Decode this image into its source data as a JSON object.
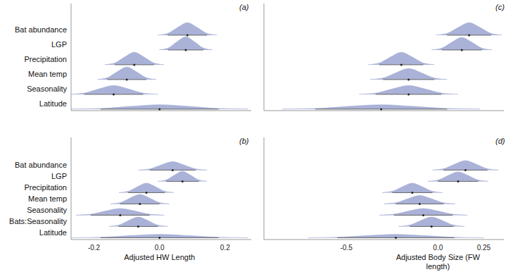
{
  "chart_data": [
    {
      "type": "ridgeline",
      "title": "(a)",
      "xlim": [
        -0.27,
        0.28
      ],
      "tick_labels": false,
      "vline": 0,
      "color": "#9ea7d3",
      "series": [
        {
          "name": "Bat abundance",
          "mean": 0.085,
          "lower": 0.025,
          "upper": 0.145,
          "x": [
            -0.005,
            0.025,
            0.055,
            0.085,
            0.115,
            0.145,
            0.175
          ],
          "values": [
            0.009,
            0.119,
            0.519,
            0.85,
            0.519,
            0.119,
            0.009
          ]
        },
        {
          "name": "LGP",
          "mean": 0.08,
          "lower": 0.026,
          "upper": 0.134,
          "x": [
            -0.001,
            0.026,
            0.053,
            0.08,
            0.107,
            0.134,
            0.161
          ],
          "values": [
            0.009,
            0.126,
            0.549,
            0.9,
            0.549,
            0.126,
            0.009
          ]
        },
        {
          "name": "Precipitation",
          "mean": -0.077,
          "lower": -0.137,
          "upper": -0.017,
          "x": [
            -0.167,
            -0.137,
            -0.107,
            -0.077,
            -0.047,
            -0.017,
            0.013
          ],
          "values": [
            0.009,
            0.119,
            0.519,
            0.85,
            0.519,
            0.119,
            0.009
          ]
        },
        {
          "name": "Mean temp",
          "mean": -0.1,
          "lower": -0.16,
          "upper": -0.04,
          "x": [
            -0.19,
            -0.16,
            -0.13,
            -0.1,
            -0.07,
            -0.04,
            -0.01
          ],
          "values": [
            0.009,
            0.119,
            0.519,
            0.85,
            0.519,
            0.119,
            0.009
          ]
        },
        {
          "name": "Seasonality",
          "mean": -0.14,
          "lower": -0.23,
          "upper": -0.05,
          "x": [
            -0.275,
            -0.23,
            -0.185,
            -0.14,
            -0.095,
            -0.05,
            -0.005
          ],
          "values": [
            0.006,
            0.084,
            0.366,
            0.6,
            0.366,
            0.084,
            0.006
          ]
        },
        {
          "name": "Latitude",
          "mean": 0,
          "lower": -0.18,
          "upper": 0.18,
          "x": [
            -0.27,
            -0.18,
            -0.09,
            0,
            0.09,
            0.18,
            0.27
          ],
          "values": [
            0.003,
            0.042,
            0.183,
            0.3,
            0.183,
            0.042,
            0.003
          ]
        }
      ]
    },
    {
      "type": "ridgeline",
      "title": "(b)",
      "xlabel": "Adjusted HW Length",
      "xlim": [
        -0.27,
        0.28
      ],
      "xticks": [
        -0.2,
        {
          "value": 0,
          "label": "0.0"
        },
        0.2
      ],
      "vline": 0,
      "color": "#9ea7d3",
      "series": [
        {
          "name": "Bat abundance",
          "mean": 0.04,
          "lower": -0.03,
          "upper": 0.11,
          "x": [
            -0.065,
            -0.03,
            0.005,
            0.04,
            0.075,
            0.11,
            0.145
          ],
          "values": [
            0.008,
            0.105,
            0.458,
            0.75,
            0.458,
            0.105,
            0.008
          ]
        },
        {
          "name": "LGP",
          "mean": 0.07,
          "lower": 0.02,
          "upper": 0.12,
          "x": [
            -0.005,
            0.02,
            0.045,
            0.07,
            0.095,
            0.12,
            0.145
          ],
          "values": [
            0.009,
            0.126,
            0.549,
            0.9,
            0.549,
            0.126,
            0.009
          ]
        },
        {
          "name": "Precipitation",
          "mean": -0.04,
          "lower": -0.096,
          "upper": 0.016,
          "x": [
            -0.124,
            -0.096,
            -0.068,
            -0.04,
            -0.012,
            0.016,
            0.044
          ],
          "values": [
            0.009,
            0.119,
            0.519,
            0.85,
            0.519,
            0.119,
            0.009
          ]
        },
        {
          "name": "Mean temp",
          "mean": -0.06,
          "lower": -0.12,
          "upper": 0,
          "x": [
            -0.15,
            -0.12,
            -0.09,
            -0.06,
            -0.03,
            0,
            0.03
          ],
          "values": [
            0.009,
            0.119,
            0.519,
            0.85,
            0.519,
            0.119,
            0.009
          ]
        },
        {
          "name": "Seasonality",
          "mean": -0.12,
          "lower": -0.21,
          "upper": -0.03,
          "x": [
            -0.255,
            -0.21,
            -0.165,
            -0.12,
            -0.075,
            -0.03,
            0.015
          ],
          "values": [
            0.006,
            0.084,
            0.366,
            0.6,
            0.366,
            0.084,
            0.006
          ]
        },
        {
          "name": "Bats:Seasonality",
          "mean": -0.065,
          "lower": -0.125,
          "upper": -0.005,
          "x": [
            -0.155,
            -0.125,
            -0.095,
            -0.065,
            -0.035,
            -0.005,
            0.025
          ],
          "values": [
            0.009,
            0.119,
            0.519,
            0.85,
            0.519,
            0.119,
            0.009
          ]
        },
        {
          "name": "Latitude",
          "mean": 0,
          "lower": -0.18,
          "upper": 0.18,
          "x": [
            -0.27,
            -0.18,
            -0.09,
            0,
            0.09,
            0.18,
            0.27
          ],
          "values": [
            0.003,
            0.042,
            0.183,
            0.3,
            0.183,
            0.042,
            0.003
          ]
        }
      ]
    },
    {
      "type": "ridgeline",
      "title": "(c)",
      "xlim": [
        -0.95,
        0.36
      ],
      "tick_labels": false,
      "vline": 0,
      "color": "#9ea7d3",
      "series": [
        {
          "mean": 0.17,
          "lower": 0.05,
          "upper": 0.29,
          "x": [
            -0.01,
            0.05,
            0.11,
            0.17,
            0.23,
            0.29,
            0.35
          ],
          "values": [
            0.009,
            0.119,
            0.519,
            0.85,
            0.519,
            0.119,
            0.009
          ]
        },
        {
          "mean": 0.13,
          "lower": 0.02,
          "upper": 0.24,
          "x": [
            -0.035,
            0.02,
            0.075,
            0.13,
            0.185,
            0.24,
            0.295
          ],
          "values": [
            0.009,
            0.119,
            0.519,
            0.85,
            0.519,
            0.119,
            0.009
          ]
        },
        {
          "mean": -0.2,
          "lower": -0.32,
          "upper": -0.08,
          "x": [
            -0.38,
            -0.32,
            -0.26,
            -0.2,
            -0.14,
            -0.08,
            -0.02
          ],
          "values": [
            0.009,
            0.119,
            0.519,
            0.85,
            0.519,
            0.119,
            0.009
          ]
        },
        {
          "mean": -0.16,
          "lower": -0.3,
          "upper": -0.02,
          "x": [
            -0.37,
            -0.3,
            -0.23,
            -0.16,
            -0.09,
            -0.02,
            0.05
          ],
          "values": [
            0.008,
            0.105,
            0.458,
            0.75,
            0.458,
            0.105,
            0.008
          ]
        },
        {
          "mean": -0.16,
          "lower": -0.34,
          "upper": 0.02,
          "x": [
            -0.43,
            -0.34,
            -0.25,
            -0.16,
            -0.07,
            0.02,
            0.11
          ],
          "values": [
            0.006,
            0.084,
            0.366,
            0.6,
            0.366,
            0.084,
            0.006
          ]
        },
        {
          "mean": -0.31,
          "lower": -0.67,
          "upper": 0.05,
          "x": [
            -0.85,
            -0.67,
            -0.49,
            -0.31,
            -0.13,
            0.05,
            0.23
          ],
          "values": [
            0.003,
            0.042,
            0.183,
            0.3,
            0.183,
            0.042,
            0.003
          ]
        }
      ]
    },
    {
      "type": "ridgeline",
      "title": "(d)",
      "xlabel": "Adjusted Body Size (FW length)",
      "xlim": [
        -0.95,
        0.36
      ],
      "xticks": [
        -0.5,
        {
          "value": 0,
          "label": "0.0"
        },
        0.25
      ],
      "vline": 0,
      "color": "#9ea7d3",
      "series": [
        {
          "mean": 0.15,
          "lower": 0.03,
          "upper": 0.27,
          "x": [
            -0.03,
            0.03,
            0.09,
            0.15,
            0.21,
            0.27,
            0.33
          ],
          "values": [
            0.009,
            0.119,
            0.519,
            0.85,
            0.519,
            0.119,
            0.009
          ]
        },
        {
          "mean": 0.11,
          "lower": 0,
          "upper": 0.22,
          "x": [
            -0.055,
            0,
            0.055,
            0.11,
            0.165,
            0.22,
            0.275
          ],
          "values": [
            0.009,
            0.119,
            0.519,
            0.85,
            0.519,
            0.119,
            0.009
          ]
        },
        {
          "mean": -0.14,
          "lower": -0.25,
          "upper": -0.03,
          "x": [
            -0.305,
            -0.25,
            -0.195,
            -0.14,
            -0.085,
            -0.03,
            0.025
          ],
          "values": [
            0.009,
            0.119,
            0.519,
            0.85,
            0.519,
            0.119,
            0.009
          ]
        },
        {
          "mean": -0.1,
          "lower": -0.23,
          "upper": 0.03,
          "x": [
            -0.295,
            -0.23,
            -0.165,
            -0.1,
            -0.035,
            0.03,
            0.095
          ],
          "values": [
            0.008,
            0.105,
            0.458,
            0.75,
            0.458,
            0.105,
            0.008
          ]
        },
        {
          "mean": -0.08,
          "lower": -0.24,
          "upper": 0.08,
          "x": [
            -0.32,
            -0.24,
            -0.16,
            -0.08,
            0,
            0.08,
            0.16
          ],
          "values": [
            0.006,
            0.084,
            0.366,
            0.6,
            0.366,
            0.084,
            0.006
          ]
        },
        {
          "mean": -0.035,
          "lower": -0.155,
          "upper": 0.085,
          "x": [
            -0.215,
            -0.155,
            -0.095,
            -0.035,
            0.025,
            0.085,
            0.145
          ],
          "values": [
            0.009,
            0.119,
            0.519,
            0.85,
            0.519,
            0.119,
            0.009
          ]
        },
        {
          "mean": -0.23,
          "lower": -0.55,
          "upper": 0.09,
          "x": [
            -0.71,
            -0.55,
            -0.39,
            -0.23,
            -0.07,
            0.09,
            0.25
          ],
          "values": [
            0.003,
            0.042,
            0.183,
            0.3,
            0.183,
            0.042,
            0.003
          ]
        }
      ]
    }
  ]
}
